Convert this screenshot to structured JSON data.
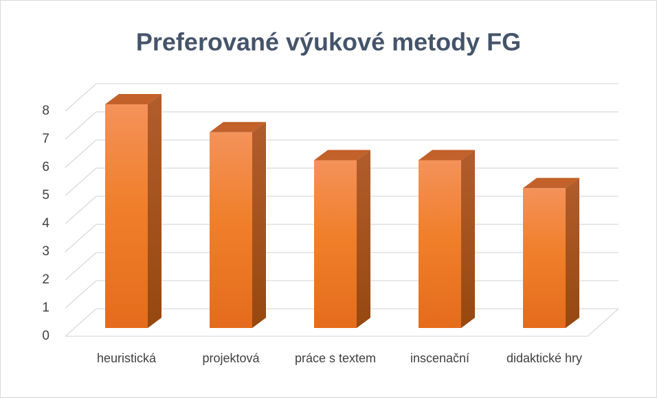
{
  "chart_data": {
    "type": "bar3d",
    "title": "Preferované výukové metody FG",
    "categories": [
      "heuristická",
      "projektová",
      "práce s textem",
      "inscenační",
      "didaktické hry"
    ],
    "values": [
      8,
      7,
      6,
      6,
      5
    ],
    "color": "#ed7d31",
    "ylim": [
      0,
      8
    ],
    "yticks": [
      0,
      1,
      2,
      3,
      4,
      5,
      6,
      7,
      8
    ],
    "grid": true
  }
}
